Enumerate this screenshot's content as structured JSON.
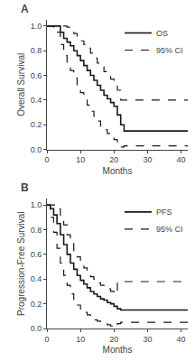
{
  "chart_data": [
    {
      "type": "step",
      "title": "A",
      "xlabel": "Months",
      "ylabel": "Overall Survival",
      "color": "#1a1a1a",
      "legend": "upper right",
      "grid": false,
      "xlim": [
        0,
        42
      ],
      "ylim": [
        0.0,
        1.05
      ],
      "xticks": [
        0,
        10,
        20,
        30,
        40
      ],
      "yticks": [
        {
          "value": 0.0,
          "label": "0.0"
        },
        {
          "value": 0.2,
          "label": "0.2"
        },
        {
          "value": 0.4,
          "label": "0.4"
        },
        {
          "value": 0.6,
          "label": "0.6"
        },
        {
          "value": 0.8,
          "label": "0.8"
        },
        {
          "value": 1.0,
          "label": "1.0"
        }
      ],
      "series": [
        {
          "name": "95% CI",
          "line_style": "dashed",
          "x": [
            0,
            2,
            4,
            5,
            6,
            7,
            8,
            9,
            10,
            11,
            12,
            13,
            14,
            15,
            16,
            17,
            18,
            19,
            20,
            21,
            22,
            23,
            42
          ],
          "values": [
            1.0,
            1.0,
            1.0,
            1.0,
            0.99,
            0.97,
            0.94,
            0.91,
            0.88,
            0.85,
            0.82,
            0.78,
            0.74,
            0.7,
            0.67,
            0.63,
            0.6,
            0.57,
            0.54,
            0.48,
            0.4,
            0.4,
            0.4
          ]
        },
        {
          "name": "95% CI",
          "line_style": "dashed",
          "x": [
            0,
            2,
            4,
            5,
            6,
            7,
            8,
            9,
            10,
            11,
            12,
            13,
            14,
            15,
            16,
            17,
            18,
            19,
            20,
            21,
            22,
            23,
            42
          ],
          "values": [
            1.0,
            0.95,
            0.85,
            0.76,
            0.7,
            0.64,
            0.58,
            0.52,
            0.46,
            0.41,
            0.36,
            0.31,
            0.27,
            0.23,
            0.19,
            0.16,
            0.13,
            0.11,
            0.08,
            0.04,
            0.02,
            0.03,
            0.03
          ]
        },
        {
          "name": "OS",
          "line_style": "solid",
          "x": [
            0,
            2,
            4,
            5,
            6,
            7,
            8,
            9,
            10,
            11,
            12,
            13,
            14,
            15,
            16,
            17,
            18,
            19,
            20,
            21,
            22,
            23,
            42
          ],
          "values": [
            1.0,
            1.0,
            0.95,
            0.9,
            0.87,
            0.84,
            0.8,
            0.76,
            0.72,
            0.68,
            0.64,
            0.6,
            0.56,
            0.52,
            0.48,
            0.44,
            0.41,
            0.38,
            0.35,
            0.28,
            0.2,
            0.15,
            0.15
          ]
        }
      ]
    },
    {
      "type": "step",
      "title": "B",
      "xlabel": "Months",
      "ylabel": "Progression-Free Survival",
      "color": "#1a1a1a",
      "legend": "upper right",
      "grid": false,
      "xlim": [
        0,
        42
      ],
      "ylim": [
        0.0,
        1.05
      ],
      "xticks": [
        0,
        10,
        20,
        30,
        40
      ],
      "yticks": [
        {
          "value": 0.0,
          "label": "0.0"
        },
        {
          "value": 0.2,
          "label": "0.2"
        },
        {
          "value": 0.4,
          "label": "0.4"
        },
        {
          "value": 0.6,
          "label": "0.6"
        },
        {
          "value": 0.8,
          "label": "0.8"
        },
        {
          "value": 1.0,
          "label": "1.0"
        }
      ],
      "series": [
        {
          "name": "95% CI",
          "line_style": "dashed",
          "x": [
            0,
            1,
            2,
            3,
            4,
            5,
            6,
            7,
            8,
            9,
            10,
            11,
            12,
            13,
            14,
            15,
            16,
            17,
            18,
            19,
            20,
            21,
            22,
            23,
            42
          ],
          "values": [
            1.0,
            1.0,
            1.0,
            0.97,
            0.91,
            0.84,
            0.76,
            0.69,
            0.63,
            0.58,
            0.53,
            0.49,
            0.46,
            0.42,
            0.4,
            0.37,
            0.35,
            0.33,
            0.32,
            0.3,
            0.28,
            0.38,
            0.38,
            0.38,
            0.38
          ]
        },
        {
          "name": "95% CI",
          "line_style": "dashed",
          "x": [
            0,
            1,
            2,
            3,
            4,
            5,
            6,
            7,
            8,
            9,
            10,
            11,
            12,
            13,
            14,
            15,
            16,
            17,
            18,
            19,
            20,
            21,
            22,
            23,
            42
          ],
          "values": [
            1.0,
            0.9,
            0.78,
            0.65,
            0.53,
            0.43,
            0.35,
            0.28,
            0.23,
            0.19,
            0.16,
            0.13,
            0.11,
            0.09,
            0.07,
            0.06,
            0.05,
            0.04,
            0.03,
            0.02,
            0.01,
            0.04,
            0.05,
            0.05,
            0.05
          ]
        },
        {
          "name": "PFS",
          "line_style": "solid",
          "x": [
            0,
            1,
            2,
            3,
            4,
            5,
            6,
            7,
            8,
            9,
            10,
            11,
            12,
            13,
            14,
            15,
            16,
            17,
            18,
            19,
            20,
            21,
            22,
            23,
            42
          ],
          "values": [
            1.0,
            0.97,
            0.92,
            0.85,
            0.76,
            0.68,
            0.6,
            0.53,
            0.48,
            0.43,
            0.39,
            0.36,
            0.33,
            0.3,
            0.28,
            0.26,
            0.24,
            0.23,
            0.21,
            0.2,
            0.18,
            0.16,
            0.15,
            0.15,
            0.15
          ]
        }
      ]
    }
  ]
}
